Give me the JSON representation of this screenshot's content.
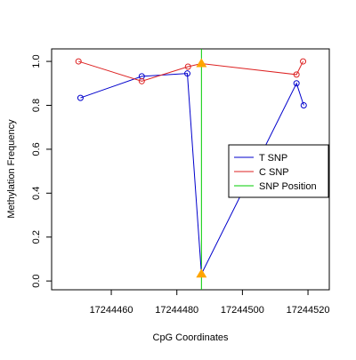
{
  "chart_data": {
    "type": "line",
    "xlabel": "CpG Coordinates",
    "ylabel": "Methylation Frequency",
    "xlim": [
      17244441.8,
      17244526.5
    ],
    "ylim": [
      -0.04,
      1.057
    ],
    "xticks": [
      17244460,
      17244480,
      17244500,
      17244520
    ],
    "yticks": [
      {
        "value": 0,
        "label": "0.0"
      },
      0.2,
      0.4,
      0.6,
      0.8,
      {
        "value": 1,
        "label": "1.0"
      }
    ],
    "snp_position": 17244487.5,
    "snp_color": "#00cc00",
    "snp_marker_color": "#ffa500",
    "legend": "right",
    "series": [
      {
        "name": "T SNP",
        "color": "#0000cc",
        "x": [
          17244450.6,
          17244469.3,
          17244483.2,
          17244487.5,
          17244516.5,
          17244518.7
        ],
        "values": [
          0.834,
          0.932,
          0.945,
          0.032,
          0.9,
          0.8
        ]
      },
      {
        "name": "C SNP",
        "color": "#dd2222",
        "x": [
          17244450,
          17244469.3,
          17244483.4,
          17244487.5,
          17244516.5,
          17244518.5
        ],
        "values": [
          1.0,
          0.91,
          0.976,
          0.99,
          0.94,
          1.0
        ]
      }
    ],
    "snp_legend": "SNP Position"
  }
}
